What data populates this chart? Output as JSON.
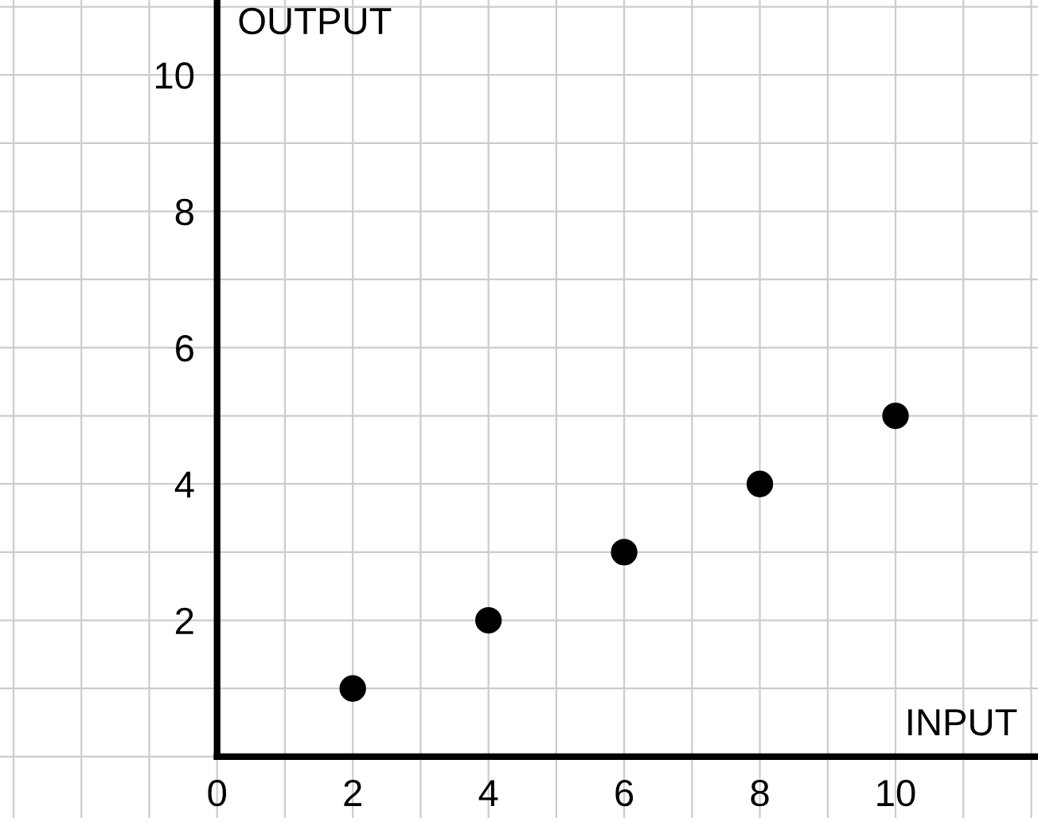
{
  "chart_data": {
    "type": "scatter",
    "xlabel": "INPUT",
    "ylabel": "OUTPUT",
    "x": [
      2,
      4,
      6,
      8,
      10
    ],
    "series": [
      {
        "color": "#000000",
        "values": [
          1,
          2,
          3,
          4,
          5
        ]
      }
    ],
    "xlim": [
      -3.2,
      12.1
    ],
    "ylim": [
      -0.9,
      11.1
    ],
    "xticks": [
      {
        "value": -3,
        "label": null
      },
      {
        "value": -2,
        "label": null
      },
      {
        "value": -1,
        "label": null
      },
      0,
      {
        "value": 1,
        "label": null
      },
      2,
      {
        "value": 3,
        "label": null
      },
      4,
      {
        "value": 5,
        "label": null
      },
      6,
      {
        "value": 7,
        "label": null
      },
      8,
      {
        "value": 9,
        "label": null
      },
      10,
      {
        "value": 11,
        "label": null
      },
      {
        "value": 12,
        "label": null
      }
    ],
    "yticks": [
      {
        "value": 0,
        "label": null
      },
      {
        "value": 1,
        "label": null
      },
      2,
      {
        "value": 3,
        "label": null
      },
      4,
      {
        "value": 5,
        "label": null
      },
      6,
      {
        "value": 7,
        "label": null
      },
      8,
      {
        "value": 9,
        "label": null
      },
      10,
      {
        "value": 11,
        "label": null
      }
    ],
    "grid": true,
    "marker": "circle",
    "legend": false
  }
}
